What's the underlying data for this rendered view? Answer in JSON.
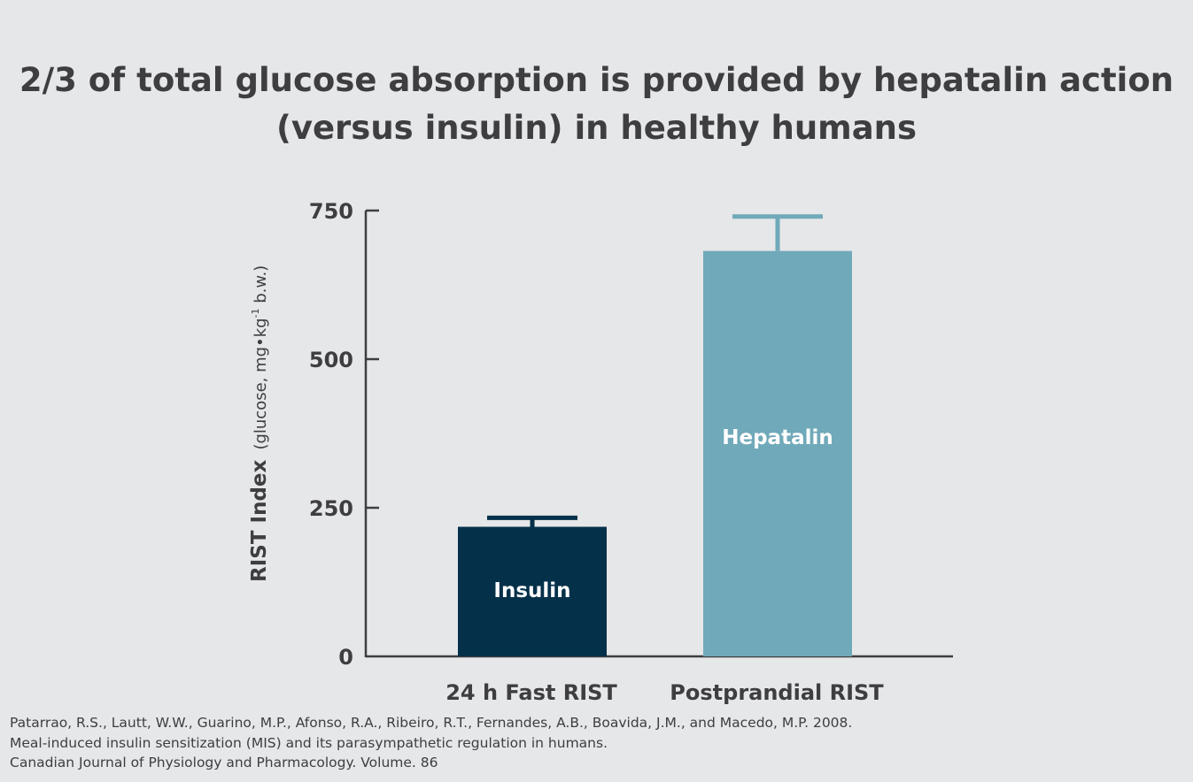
{
  "title": {
    "line1": "2/3 of total glucose absorption is provided by hepatalin action",
    "line2": "(versus insulin) in healthy humans"
  },
  "chart_data": {
    "type": "bar",
    "categories": [
      "24 h Fast RIST",
      "Postprandial RIST"
    ],
    "values": [
      218,
      682
    ],
    "error_upper": [
      233,
      740
    ],
    "bar_labels": [
      "Insulin",
      "Hepatalin"
    ],
    "bar_colors": [
      "#04304a",
      "#70a9b9"
    ],
    "ylabel_bold": "RIST Index",
    "ylabel_unit_prefix": "(glucose, mg•kg",
    "ylabel_unit_sup": "-1",
    "ylabel_unit_suffix": " b.w.)",
    "yticks": [
      0,
      250,
      500,
      750
    ],
    "ylim": [
      0,
      750
    ],
    "grid": false
  },
  "citation": {
    "line1": "Patarrao, R.S., Lautt, W.W., Guarino, M.P., Afonso, R.A., Ribeiro, R.T., Fernandes, A.B., Boavida, J.M., and Macedo, M.P. 2008.",
    "line2": "Meal-induced insulin sensitization (MIS) and its parasympathetic regulation in humans.",
    "line3": "Canadian Journal of Physiology and Pharmacology. Volume. 86"
  }
}
